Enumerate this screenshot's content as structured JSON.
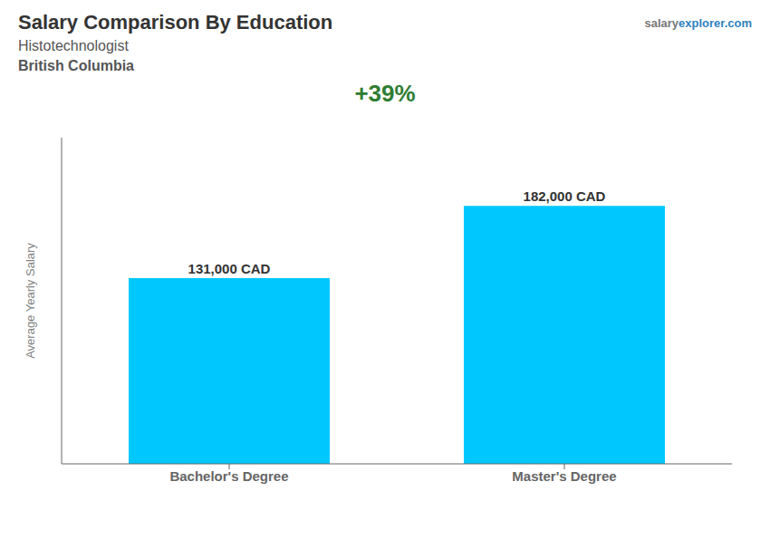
{
  "chart_data": {
    "type": "bar",
    "title": "Salary Comparison By Education",
    "subtitle": [
      "Histotechnologist",
      "British Columbia"
    ],
    "ylabel": "Average Yearly Salary",
    "categories": [
      "Bachelor's Degree",
      "Master's Degree"
    ],
    "values": [
      131000,
      182000
    ],
    "value_labels": [
      "131,000 CAD",
      "182,000 CAD"
    ],
    "data_labels": true,
    "color": "#00C8FF",
    "ylim": [
      0,
      230000
    ],
    "tick_labels": "x",
    "annotations": [
      "+39%",
      "salary",
      "explorer.com"
    ]
  }
}
